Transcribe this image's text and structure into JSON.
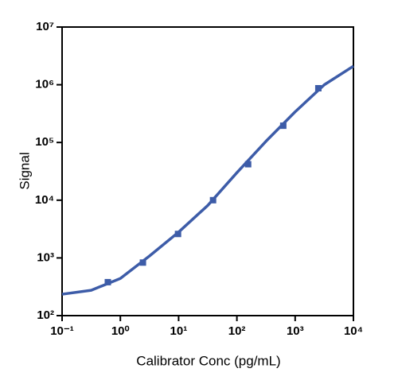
{
  "chart_data": {
    "type": "scatter",
    "x_label": "Calibrator Conc (pg/mL)",
    "y_label": "Signal",
    "x_scale": "log",
    "y_scale": "log",
    "xlim": [
      0.1,
      10000
    ],
    "ylim": [
      100,
      10000000
    ],
    "xticks": [
      {
        "value": 0.1,
        "label": "10⁻¹"
      },
      {
        "value": 1,
        "label": "10⁰"
      },
      {
        "value": 10,
        "label": "10¹"
      },
      {
        "value": 100,
        "label": "10²"
      },
      {
        "value": 1000,
        "label": "10³"
      },
      {
        "value": 10000,
        "label": "10⁴"
      }
    ],
    "yticks": [
      {
        "value": 100,
        "label": "10²"
      },
      {
        "value": 1000,
        "label": "10³"
      },
      {
        "value": 10000,
        "label": "10⁴"
      },
      {
        "value": 100000,
        "label": "10⁵"
      },
      {
        "value": 1000000,
        "label": "10⁶"
      },
      {
        "value": 10000000,
        "label": "10⁷"
      }
    ],
    "color": "#3d5ca8",
    "points": {
      "x": [
        0.61,
        2.44,
        9.77,
        39,
        156,
        625,
        2500
      ],
      "values": [
        380,
        830,
        2600,
        10000,
        42000,
        195000,
        870000
      ]
    },
    "fit": {
      "x": [
        0.1,
        0.316,
        1,
        3.16,
        10,
        31.6,
        100,
        316,
        1000,
        3162,
        10000
      ],
      "values": [
        235,
        275,
        440,
        1080,
        2800,
        8100,
        30000,
        105000,
        340000,
        1000000,
        2100000
      ]
    }
  }
}
